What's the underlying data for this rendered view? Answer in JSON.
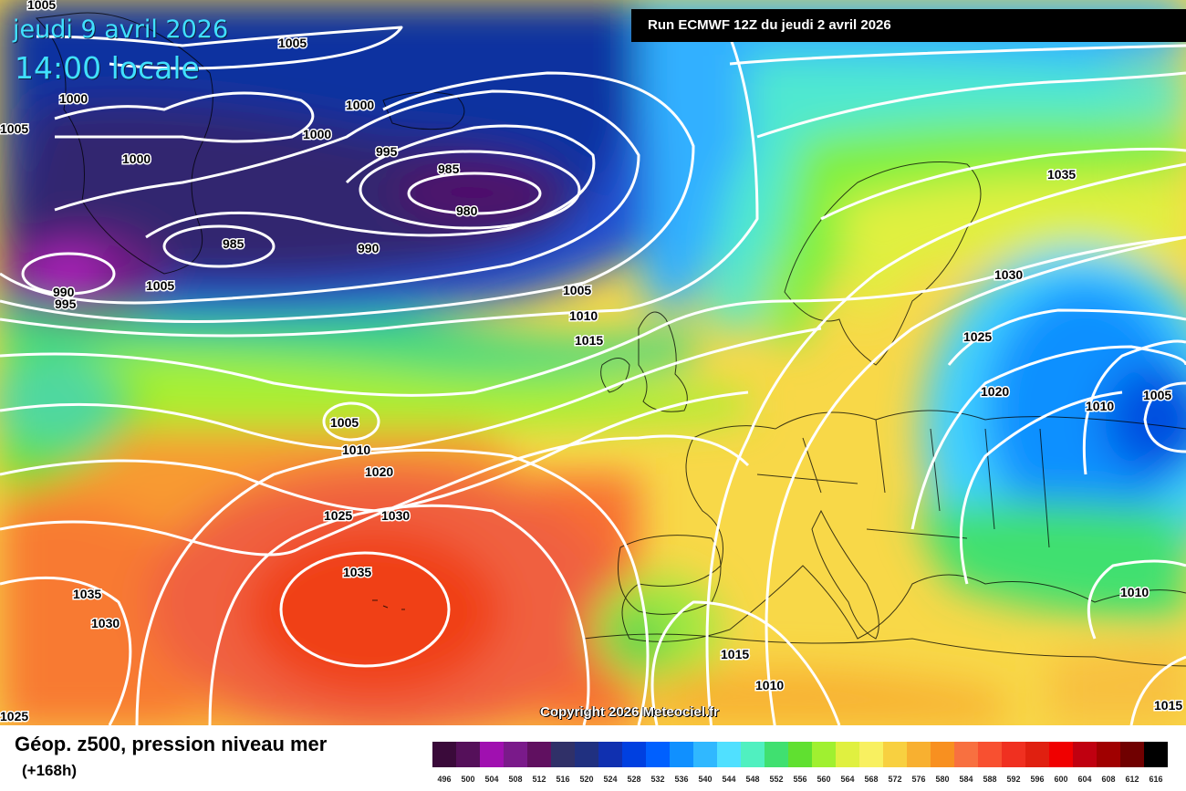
{
  "header": {
    "date": "jeudi 9 avril 2026",
    "time": "14:00 locale",
    "run": "Run ECMWF 12Z du jeudi 2 avril 2026"
  },
  "copyright": "Copyright 2026 Meteociel.fr",
  "footer": {
    "title": "Géop. z500, pression niveau mer",
    "subtitle": "(+168h)"
  },
  "legend": {
    "values": [
      "496",
      "500",
      "504",
      "508",
      "512",
      "516",
      "520",
      "524",
      "528",
      "532",
      "536",
      "540",
      "544",
      "548",
      "552",
      "556",
      "560",
      "564",
      "568",
      "572",
      "576",
      "580",
      "584",
      "588",
      "592",
      "596",
      "600",
      "604",
      "608",
      "612",
      "616"
    ],
    "colors": [
      "#3a0a3a",
      "#55105a",
      "#a010b0",
      "#7a1a8a",
      "#601060",
      "#303068",
      "#203080",
      "#1030b0",
      "#0040e0",
      "#0060ff",
      "#1090ff",
      "#30b8ff",
      "#50e0ff",
      "#50f0c0",
      "#40e070",
      "#60e030",
      "#a0f030",
      "#e0f040",
      "#f8f060",
      "#f8d040",
      "#f8b030",
      "#f89020",
      "#f87040",
      "#f85030",
      "#f03020",
      "#e02010",
      "#f00000",
      "#c00010",
      "#a00000",
      "#700000",
      "#000000"
    ]
  },
  "isobars": [
    {
      "value": "1005",
      "label": "1005"
    },
    {
      "value": "1000",
      "label": "1000"
    },
    {
      "value": "995",
      "label": "995"
    },
    {
      "value": "990",
      "label": "990"
    },
    {
      "value": "985",
      "label": "985"
    },
    {
      "value": "980",
      "label": "980"
    },
    {
      "value": "1010",
      "label": "1010"
    },
    {
      "value": "1015",
      "label": "1015"
    },
    {
      "value": "1020",
      "label": "1020"
    },
    {
      "value": "1025",
      "label": "1025"
    },
    {
      "value": "1030",
      "label": "1030"
    },
    {
      "value": "1035",
      "label": "1035"
    }
  ]
}
